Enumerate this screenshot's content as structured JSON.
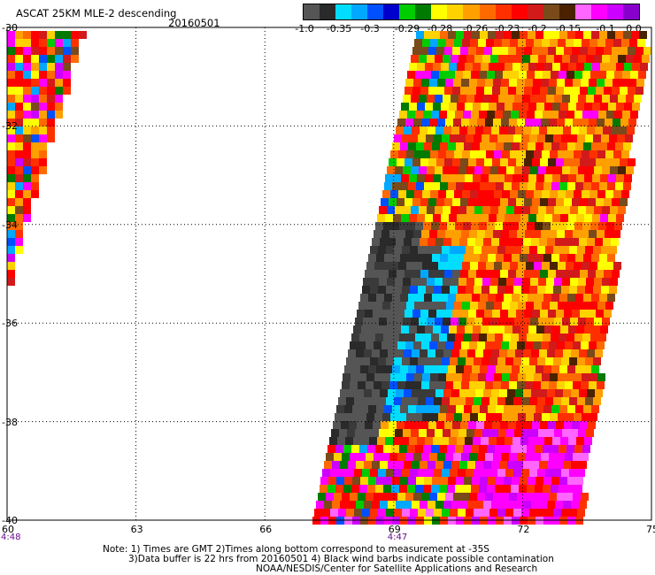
{
  "header": {
    "title": "ASCAT 25KM MLE-2 descending",
    "date": "20160501"
  },
  "colorbar": {
    "colors": [
      "#555555",
      "#2a2a2a",
      "#00ddff",
      "#00a8ff",
      "#0050ff",
      "#0000cc",
      "#00cc00",
      "#007a00",
      "#ffff00",
      "#ffd200",
      "#ffa000",
      "#ff6a00",
      "#ff3000",
      "#ff0000",
      "#d21a1a",
      "#7a4a1a",
      "#4a2200",
      "#ff66ff",
      "#ff00ff",
      "#cc00ff",
      "#8800cc"
    ],
    "labels": [
      "-1.0",
      "-0.35",
      "-0.3",
      "-0.29",
      "-0.28",
      "-0.26",
      "-0.23",
      "-0.2",
      "-0.15",
      "-0.1",
      "0.0"
    ]
  },
  "map": {
    "lon_ticks": [
      "60",
      "63",
      "66",
      "69",
      "72",
      "75"
    ],
    "lat_ticks": [
      "-30",
      "-32",
      "-34",
      "-36",
      "-38",
      "-40"
    ],
    "lon_range": [
      60,
      75
    ],
    "lat_range": [
      -40,
      -30
    ],
    "grid": true,
    "time_labels": [
      {
        "text": "4:48",
        "lon": 60
      },
      {
        "text": "4:47",
        "lon": 69
      }
    ]
  },
  "notes": {
    "line1": "Note: 1) Times are GMT 2)Times along bottom correspond to measurement at -35S",
    "line2": "3)Data buffer is 22 hrs from 20160501 4) Black wind barbs indicate possible contamination",
    "line3": "NOAA/NESDIS/Center for Satellite Applications and Research"
  }
}
